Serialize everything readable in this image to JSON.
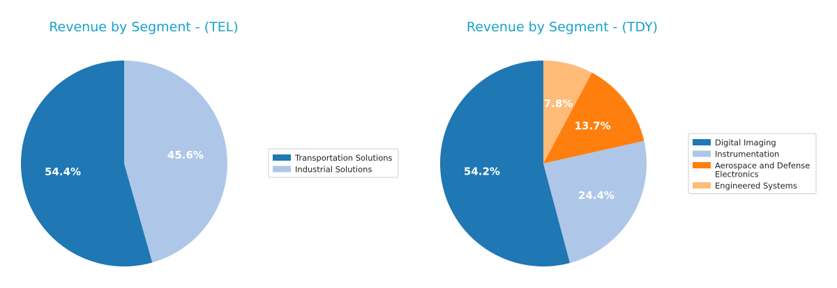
{
  "chart_data": [
    {
      "type": "pie",
      "title": "Revenue by Segment - (TEL)",
      "labels": [
        "Transportation Solutions",
        "Industrial Solutions"
      ],
      "values": [
        54.4,
        45.6
      ],
      "value_labels": [
        "54.4%",
        "45.6%"
      ],
      "colors": [
        "#1f77b4",
        "#aec7e8"
      ],
      "legend": {
        "entries": [
          "Transportation Solutions",
          "Industrial Solutions"
        ],
        "placement": "right"
      }
    },
    {
      "type": "pie",
      "title": "Revenue by Segment - (TDY)",
      "labels": [
        "Digital Imaging",
        "Instrumentation",
        "Aerospace and Defense Electronics",
        "Engineered Systems"
      ],
      "values": [
        54.2,
        24.4,
        13.7,
        7.8
      ],
      "value_labels": [
        "54.2%",
        "24.4%",
        "13.7%",
        "7.8%"
      ],
      "colors": [
        "#1f77b4",
        "#aec7e8",
        "#ff7f0e",
        "#ffbb78"
      ],
      "legend": {
        "entries": [
          "Digital Imaging",
          "Instrumentation",
          "Aerospace and Defense\nElectronics",
          "Engineered Systems"
        ],
        "placement": "right"
      }
    }
  ],
  "style": {
    "title_color": "#17a2c8",
    "legend_border": "#cccccc"
  }
}
